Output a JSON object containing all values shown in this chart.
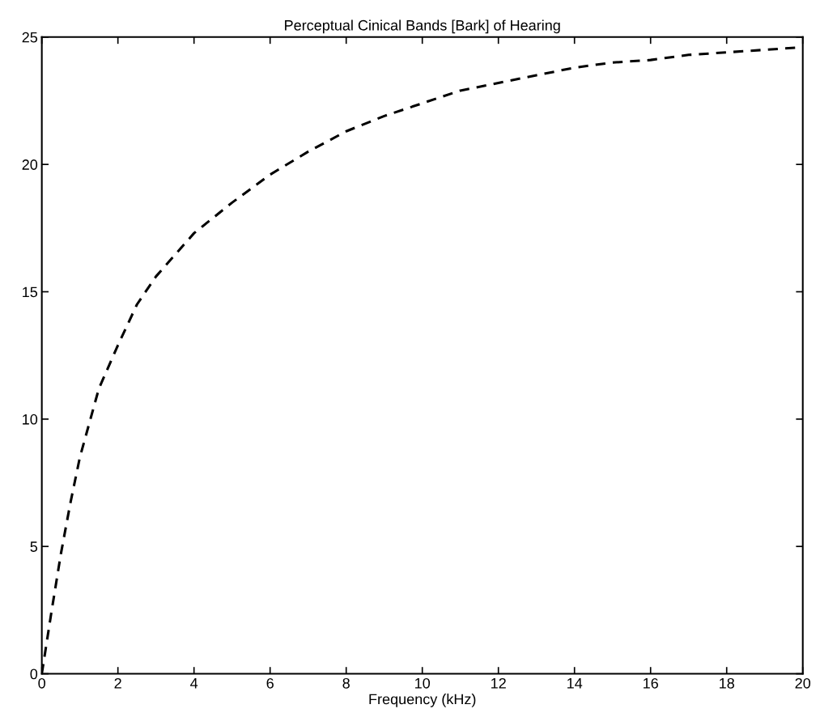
{
  "chart_data": {
    "type": "line",
    "title": "Perceptual Cinical Bands [Bark] of Hearing",
    "xlabel": "Frequency (kHz)",
    "series": [
      {
        "color": "#000000",
        "x": [
          0,
          0.25,
          0.5,
          0.75,
          1,
          1.5,
          2,
          2.5,
          3,
          4,
          5,
          6,
          7,
          8,
          9,
          10,
          11,
          12,
          13,
          14,
          15,
          16,
          17,
          18,
          19,
          20
        ],
        "values": [
          0,
          2.4,
          4.7,
          6.7,
          8.5,
          11.2,
          12.9,
          14.5,
          15.6,
          17.3,
          18.5,
          19.6,
          20.5,
          21.3,
          21.9,
          22.4,
          22.9,
          23.2,
          23.5,
          23.8,
          24.0,
          24.1,
          24.3,
          24.4,
          24.5,
          24.6
        ]
      }
    ],
    "xlim": [
      0,
      20
    ],
    "ylim": [
      0,
      25
    ],
    "xticks": [
      0,
      2,
      4,
      6,
      8,
      10,
      12,
      14,
      16,
      18,
      20
    ],
    "yticks": [
      0,
      5,
      10,
      15,
      20,
      25
    ],
    "grid": false,
    "legend": false,
    "marker": "none",
    "line_style": "dashed"
  }
}
